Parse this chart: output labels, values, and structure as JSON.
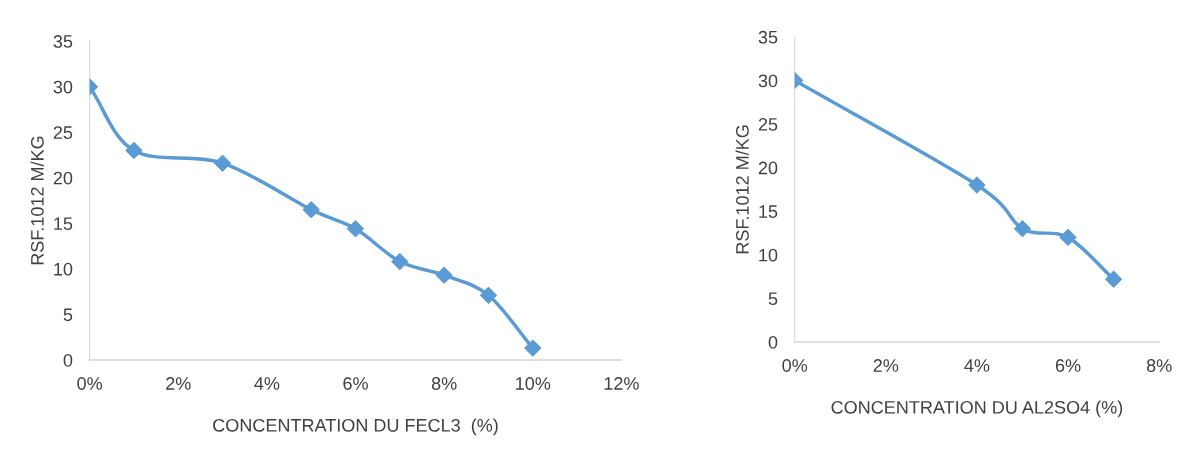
{
  "chart_data": [
    {
      "type": "line",
      "xlabel": "CONCENTRATION DU FECL3  (%)",
      "ylabel": "RSF.1012 M/KG",
      "x": [
        0,
        1,
        3,
        5,
        6,
        7,
        8,
        9,
        10
      ],
      "series": [
        {
          "color": "#5b9bd5",
          "values": [
            30,
            23,
            21.6,
            16.5,
            14.4,
            10.8,
            9.3,
            7.1,
            1.3
          ]
        }
      ],
      "xlim": [
        0,
        12
      ],
      "xticks": [
        {
          "value": 0,
          "label": "0%"
        },
        {
          "value": 2,
          "label": "2%"
        },
        {
          "value": 4,
          "label": "4%"
        },
        {
          "value": 6,
          "label": "6%"
        },
        {
          "value": 8,
          "label": "8%"
        },
        {
          "value": 10,
          "label": "10%"
        },
        {
          "value": 12,
          "label": "12%"
        }
      ],
      "ylim": [
        0,
        35
      ],
      "yticks": [
        0,
        5,
        10,
        15,
        20,
        25,
        30,
        35
      ],
      "marker": "diamond",
      "line_style": "solid",
      "grid": false,
      "legend": false
    },
    {
      "type": "line",
      "xlabel": "CONCENTRATION DU AL2SO4 (%)",
      "ylabel": "RSF.1012 M/KG",
      "x": [
        0,
        4,
        5,
        6,
        7
      ],
      "series": [
        {
          "color": "#5b9bd5",
          "values": [
            30,
            18,
            13,
            12,
            7.2
          ]
        }
      ],
      "xlim": [
        0,
        8
      ],
      "xticks": [
        {
          "value": 0,
          "label": "0%"
        },
        {
          "value": 2,
          "label": "2%"
        },
        {
          "value": 4,
          "label": "4%"
        },
        {
          "value": 6,
          "label": "6%"
        },
        {
          "value": 8,
          "label": "8%"
        }
      ],
      "ylim": [
        0,
        35
      ],
      "yticks": [
        0,
        5,
        10,
        15,
        20,
        25,
        30,
        35
      ],
      "marker": "diamond",
      "line_style": "solid",
      "grid": false,
      "legend": false
    }
  ]
}
